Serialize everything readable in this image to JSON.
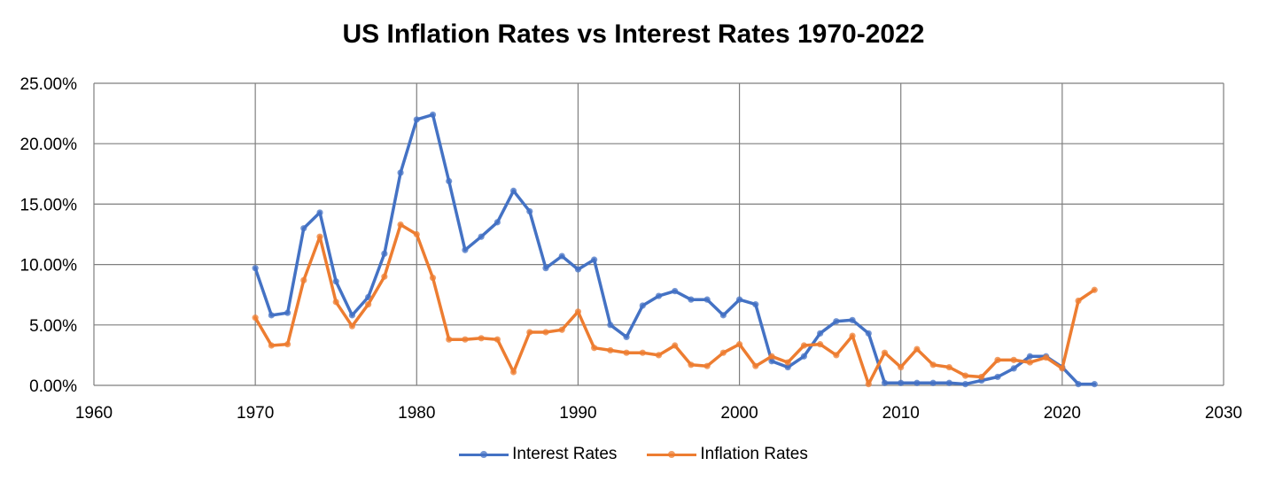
{
  "chart_data": {
    "type": "line",
    "title": "US Inflation Rates vs Interest Rates 1970-2022",
    "xlim": [
      1960,
      2030
    ],
    "ylim": [
      0,
      25
    ],
    "x_ticks": [
      "1960",
      "1970",
      "1980",
      "1990",
      "2000",
      "2010",
      "2020",
      "2030"
    ],
    "y_ticks": [
      "0.00%",
      "5.00%",
      "10.00%",
      "15.00%",
      "20.00%",
      "25.00%"
    ],
    "grid": true,
    "legend_position": "bottom",
    "x": [
      1970,
      1971,
      1972,
      1973,
      1974,
      1975,
      1976,
      1977,
      1978,
      1979,
      1980,
      1981,
      1982,
      1983,
      1984,
      1985,
      1986,
      1987,
      1988,
      1989,
      1990,
      1991,
      1992,
      1993,
      1994,
      1995,
      1996,
      1997,
      1998,
      1999,
      2000,
      2001,
      2002,
      2003,
      2004,
      2005,
      2006,
      2007,
      2008,
      2009,
      2010,
      2011,
      2012,
      2013,
      2014,
      2015,
      2016,
      2017,
      2018,
      2019,
      2020,
      2021,
      2022
    ],
    "series": [
      {
        "name": "Interest Rates",
        "color": "#4472C4",
        "values": [
          9.7,
          5.8,
          6.0,
          13.0,
          14.3,
          8.6,
          5.8,
          7.3,
          10.9,
          17.6,
          22.0,
          22.4,
          16.9,
          11.2,
          12.3,
          13.5,
          16.1,
          14.4,
          9.7,
          10.7,
          9.6,
          10.4,
          5.0,
          4.0,
          6.6,
          7.4,
          7.8,
          7.1,
          7.1,
          5.8,
          7.1,
          6.7,
          2.0,
          1.5,
          2.4,
          4.3,
          5.3,
          5.4,
          4.3,
          0.2,
          0.2,
          0.2,
          0.2,
          0.2,
          0.1,
          0.4,
          0.7,
          1.4,
          2.4,
          2.4,
          1.5,
          0.1,
          0.1
        ]
      },
      {
        "name": "Inflation Rates",
        "color": "#ED7D31",
        "values": [
          5.6,
          3.3,
          3.4,
          8.7,
          12.3,
          6.9,
          4.9,
          6.7,
          9.0,
          13.3,
          12.5,
          8.9,
          3.8,
          3.8,
          3.9,
          3.8,
          1.1,
          4.4,
          4.4,
          4.6,
          6.1,
          3.1,
          2.9,
          2.7,
          2.7,
          2.5,
          3.3,
          1.7,
          1.6,
          2.7,
          3.4,
          1.6,
          2.4,
          1.9,
          3.3,
          3.4,
          2.5,
          4.1,
          0.1,
          2.7,
          1.5,
          3.0,
          1.7,
          1.5,
          0.8,
          0.7,
          2.1,
          2.1,
          1.9,
          2.3,
          1.4,
          7.0,
          7.9
        ]
      }
    ]
  }
}
